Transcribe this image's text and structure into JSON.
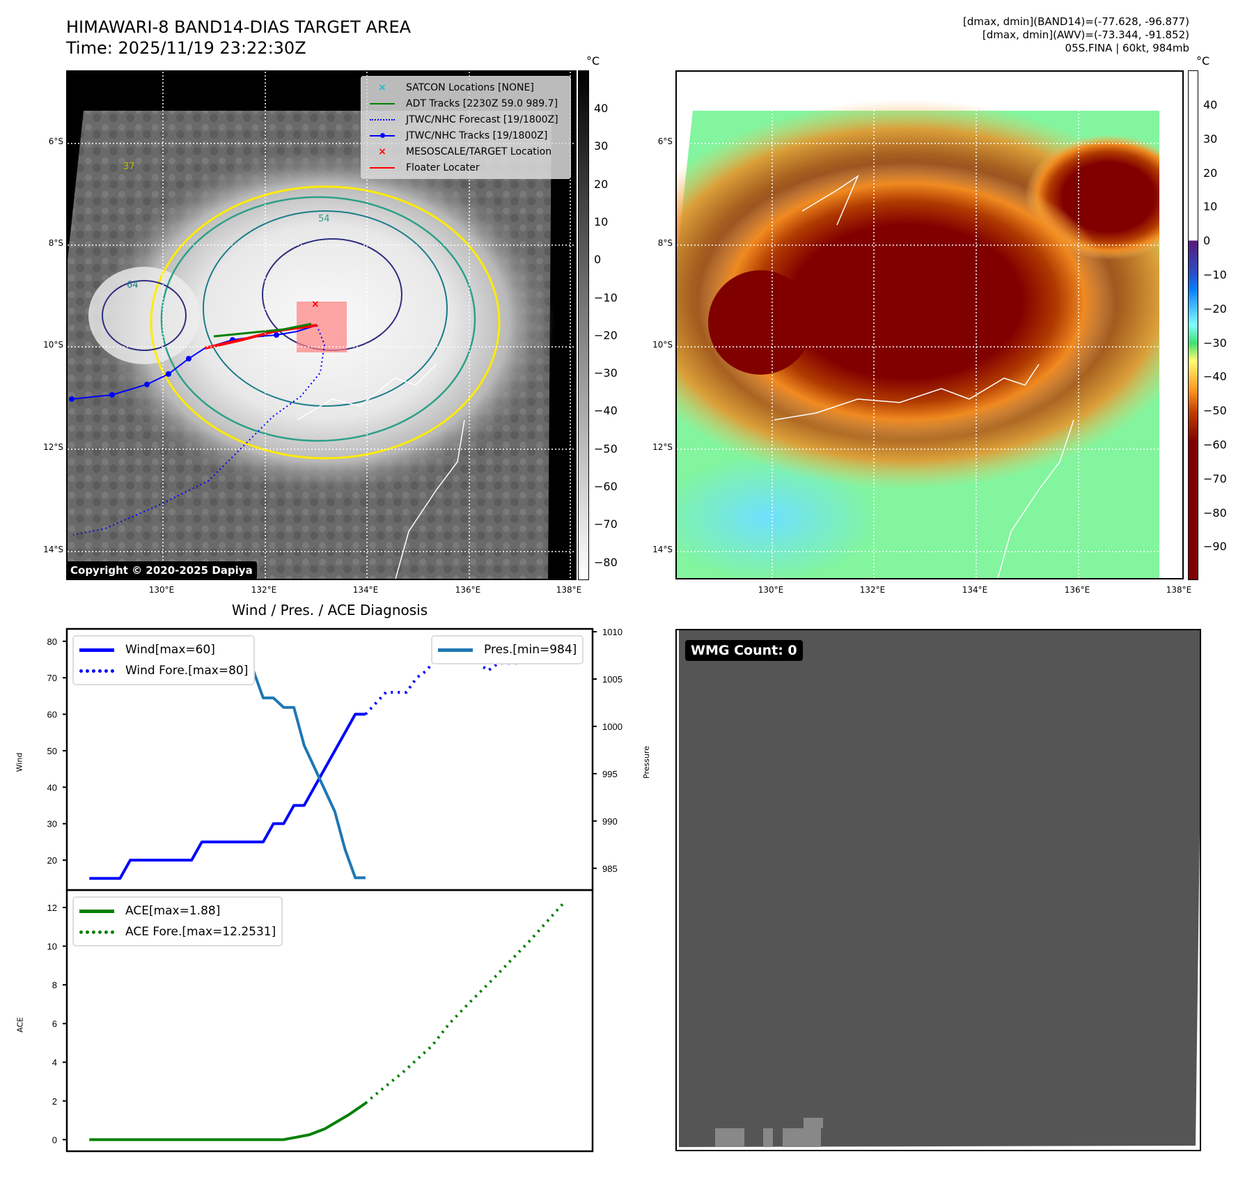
{
  "header": {
    "title": "HIMAWARI-8 BAND14-DIAS TARGET AREA",
    "time": "Time: 2025/11/19 23:22:30Z"
  },
  "info": {
    "line1": "[dmax, dmin](BAND14)=(-77.628, -96.877)",
    "line2": "[dmax, dmin](AWV)=(-73.344, -91.852)",
    "line3": "05S.FINA | 60kt, 984mb"
  },
  "maps": {
    "lat_labels": [
      "6°S",
      "8°S",
      "10°S",
      "12°S",
      "14°S"
    ],
    "lon_labels": [
      "130°E",
      "132°E",
      "134°E",
      "136°E",
      "138°E"
    ],
    "copyright": "Copyright © 2020-2025 Dapiya",
    "unit": "°C",
    "cbar_left": [
      "40",
      "30",
      "20",
      "10",
      "0",
      "−10",
      "−20",
      "−30",
      "−40",
      "−50",
      "−60",
      "−70",
      "−80"
    ],
    "cbar_right": [
      "40",
      "30",
      "20",
      "10",
      "0",
      "−10",
      "−20",
      "−30",
      "−40",
      "−50",
      "−60",
      "−70",
      "−80",
      "−90"
    ],
    "legend": [
      {
        "label": "SATCON Locations [NONE]",
        "color": "#17becf",
        "marker": "x"
      },
      {
        "label": "ADT Tracks [2230Z 59.0 989.7]",
        "color": "#008000",
        "marker": "line"
      },
      {
        "label": "JTWC/NHC Forecast [19/1800Z]",
        "color": "#0000ff",
        "marker": "dotted"
      },
      {
        "label": "JTWC/NHC Tracks [19/1800Z]",
        "color": "#0000ff",
        "marker": "line-dot"
      },
      {
        "label": "MESOSCALE/TARGET Location",
        "color": "#ff0000",
        "marker": "x"
      },
      {
        "label": "Floater Locater",
        "color": "#ff0000",
        "marker": "line"
      }
    ],
    "contour_labels": [
      "64",
      "54",
      "37"
    ]
  },
  "wmg": {
    "label": "WMG Count: 0"
  },
  "chart_data": [
    {
      "type": "line",
      "title": "Wind / Pres. / ACE Diagnosis",
      "ylabel": "Wind",
      "y2label": "Pressure",
      "xlim": [
        -2.2,
        49.2
      ],
      "ylim": [
        11.8,
        83.4
      ],
      "y2lim": [
        982.7,
        1010.3
      ],
      "yticks": [
        20,
        30,
        40,
        50,
        60,
        70,
        80
      ],
      "y2ticks": [
        985,
        990,
        995,
        1000,
        1005,
        1010
      ],
      "series": [
        {
          "name": "Wind[max=60]",
          "axis": "left",
          "style": "solid",
          "color": "#0000ff",
          "x": [
            0,
            3,
            4,
            10,
            11,
            17,
            18,
            19,
            20,
            21,
            26,
            27
          ],
          "y": [
            15,
            15,
            20,
            20,
            25,
            25,
            30,
            30,
            35,
            35,
            60,
            60
          ]
        },
        {
          "name": "Wind Fore.[max=80]",
          "axis": "left",
          "style": "dotted",
          "color": "#0000ff",
          "x": [
            27,
            28,
            29,
            31,
            32,
            33,
            34,
            35,
            36,
            38,
            38.5,
            39,
            40,
            42,
            43,
            46.4
          ],
          "y": [
            60,
            63,
            66,
            66,
            70,
            72,
            76,
            80,
            76,
            76,
            73,
            72,
            74,
            74,
            75.5,
            75.5
          ]
        },
        {
          "name": "Pres.[min=984]",
          "axis": "right",
          "style": "solid",
          "color": "#1f77b4",
          "x": [
            0,
            6,
            8,
            10,
            11,
            16,
            17,
            18,
            19,
            20,
            21,
            22.5,
            24,
            25,
            26,
            27
          ],
          "y": [
            1009,
            1009,
            1007,
            1007,
            1006,
            1006,
            1003,
            1003,
            1002,
            1002,
            998,
            994.5,
            991,
            987,
            984,
            984
          ]
        }
      ]
    },
    {
      "type": "line",
      "ylabel": "ACE",
      "xlim": [
        -2.2,
        49.2
      ],
      "ylim": [
        -0.6,
        12.9
      ],
      "yticks": [
        0,
        2,
        4,
        6,
        8,
        10,
        12
      ],
      "series": [
        {
          "name": "ACE[max=1.88]",
          "style": "solid",
          "color": "#008000",
          "x": [
            0,
            19,
            20,
            21.5,
            23,
            23.8,
            25.4,
            27
          ],
          "y": [
            0,
            0,
            0.1,
            0.25,
            0.55,
            0.8,
            1.3,
            1.88
          ]
        },
        {
          "name": "ACE Fore.[max=12.2531]",
          "style": "dotted",
          "color": "#008000",
          "x": [
            27,
            27.8,
            30.7,
            33.5,
            35.2,
            37.2,
            39.1,
            41.1,
            43.1,
            46.4
          ],
          "y": [
            1.88,
            2.25,
            3.5,
            4.85,
            6.0,
            7.1,
            8.1,
            9.2,
            10.3,
            12.25
          ]
        }
      ]
    }
  ]
}
